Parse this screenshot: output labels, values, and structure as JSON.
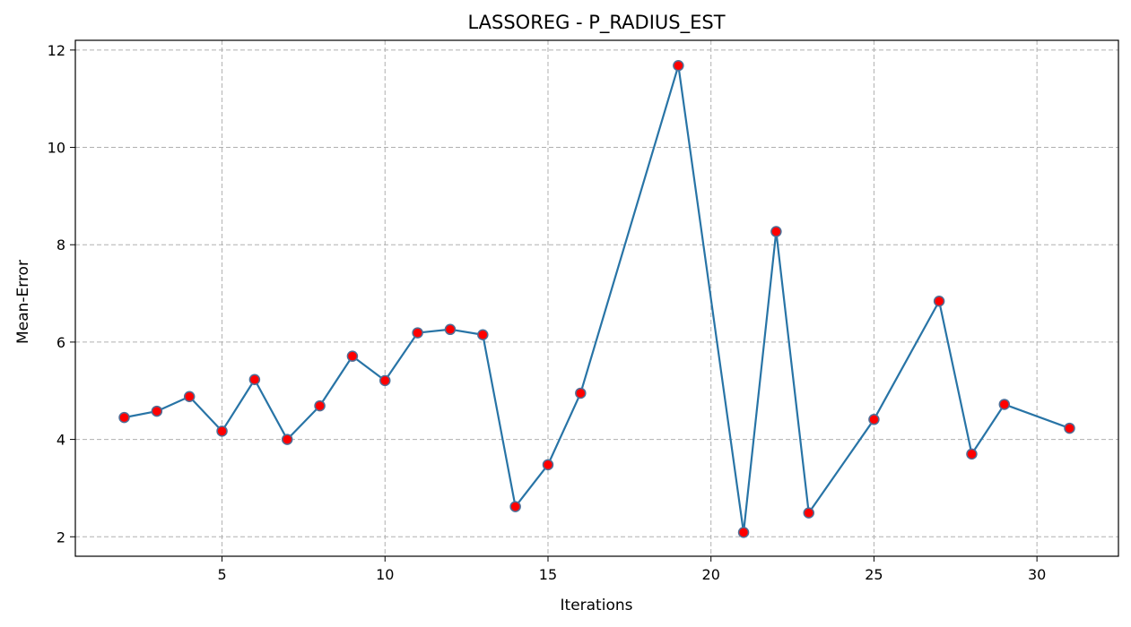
{
  "chart_data": {
    "type": "line",
    "title": "LASSOREG - P_RADIUS_EST",
    "xlabel": "Iterations",
    "ylabel": "Mean-Error",
    "xlim": [
      0.5,
      32.5
    ],
    "ylim": [
      1.6,
      12.2
    ],
    "xticks": [
      5,
      10,
      15,
      20,
      25,
      30
    ],
    "yticks": [
      2,
      4,
      6,
      8,
      10,
      12
    ],
    "grid": true,
    "colors": {
      "line": "#2874a6",
      "marker_fill": "#ff0000",
      "marker_edge": "#4f6f97"
    },
    "series": [
      {
        "x": [
          2,
          3,
          4,
          5,
          6,
          7,
          8,
          9,
          10,
          11,
          12,
          13,
          14,
          15,
          16,
          19,
          21,
          22,
          23,
          25,
          27,
          28,
          29,
          31
        ],
        "y": [
          4.45,
          4.58,
          4.88,
          4.17,
          5.23,
          4.0,
          4.69,
          5.71,
          5.21,
          6.19,
          6.26,
          6.15,
          2.62,
          3.48,
          4.95,
          11.68,
          2.09,
          8.27,
          2.49,
          4.41,
          6.84,
          3.7,
          4.72,
          4.23
        ]
      }
    ]
  }
}
